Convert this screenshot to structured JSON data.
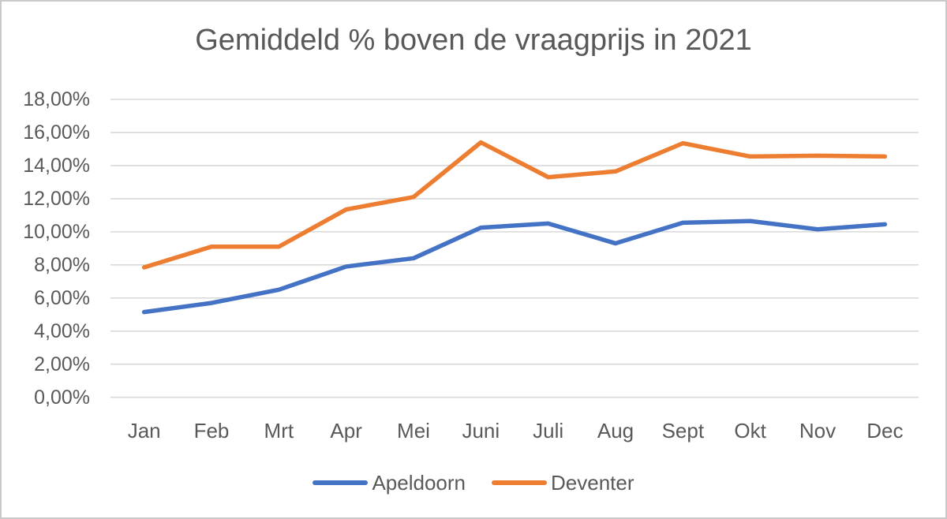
{
  "chart_data": {
    "type": "line",
    "title": "Gemiddeld % boven de vraagprijs in 2021",
    "categories": [
      "Jan",
      "Feb",
      "Mrt",
      "Apr",
      "Mei",
      "Juni",
      "Juli",
      "Aug",
      "Sept",
      "Okt",
      "Nov",
      "Dec"
    ],
    "series": [
      {
        "name": "Apeldoorn",
        "color": "#4472C4",
        "values": [
          5.15,
          5.7,
          6.5,
          7.9,
          8.4,
          10.25,
          10.5,
          9.3,
          10.55,
          10.65,
          10.15,
          10.45
        ]
      },
      {
        "name": "Deventer",
        "color": "#ED7D31",
        "values": [
          7.85,
          9.1,
          9.1,
          11.35,
          12.1,
          15.4,
          13.3,
          13.65,
          15.35,
          14.55,
          14.6,
          14.55
        ]
      }
    ],
    "xlabel": "",
    "ylabel": "",
    "ylim": [
      0,
      18
    ],
    "y_ticks": [
      {
        "value": 0,
        "label": "0,00%"
      },
      {
        "value": 2,
        "label": "2,00%"
      },
      {
        "value": 4,
        "label": "4,00%"
      },
      {
        "value": 6,
        "label": "6,00%"
      },
      {
        "value": 8,
        "label": "8,00%"
      },
      {
        "value": 10,
        "label": "10,00%"
      },
      {
        "value": 12,
        "label": "12,00%"
      },
      {
        "value": 14,
        "label": "14,00%"
      },
      {
        "value": 16,
        "label": "16,00%"
      },
      {
        "value": 18,
        "label": "18,00%"
      }
    ],
    "grid": true,
    "legend_position": "bottom"
  },
  "styles": {
    "text_color": "#595959",
    "gridline_color": "#D9D9D9",
    "frame_border_color": "#C9C9C9",
    "background_color": "#FFFFFF"
  }
}
